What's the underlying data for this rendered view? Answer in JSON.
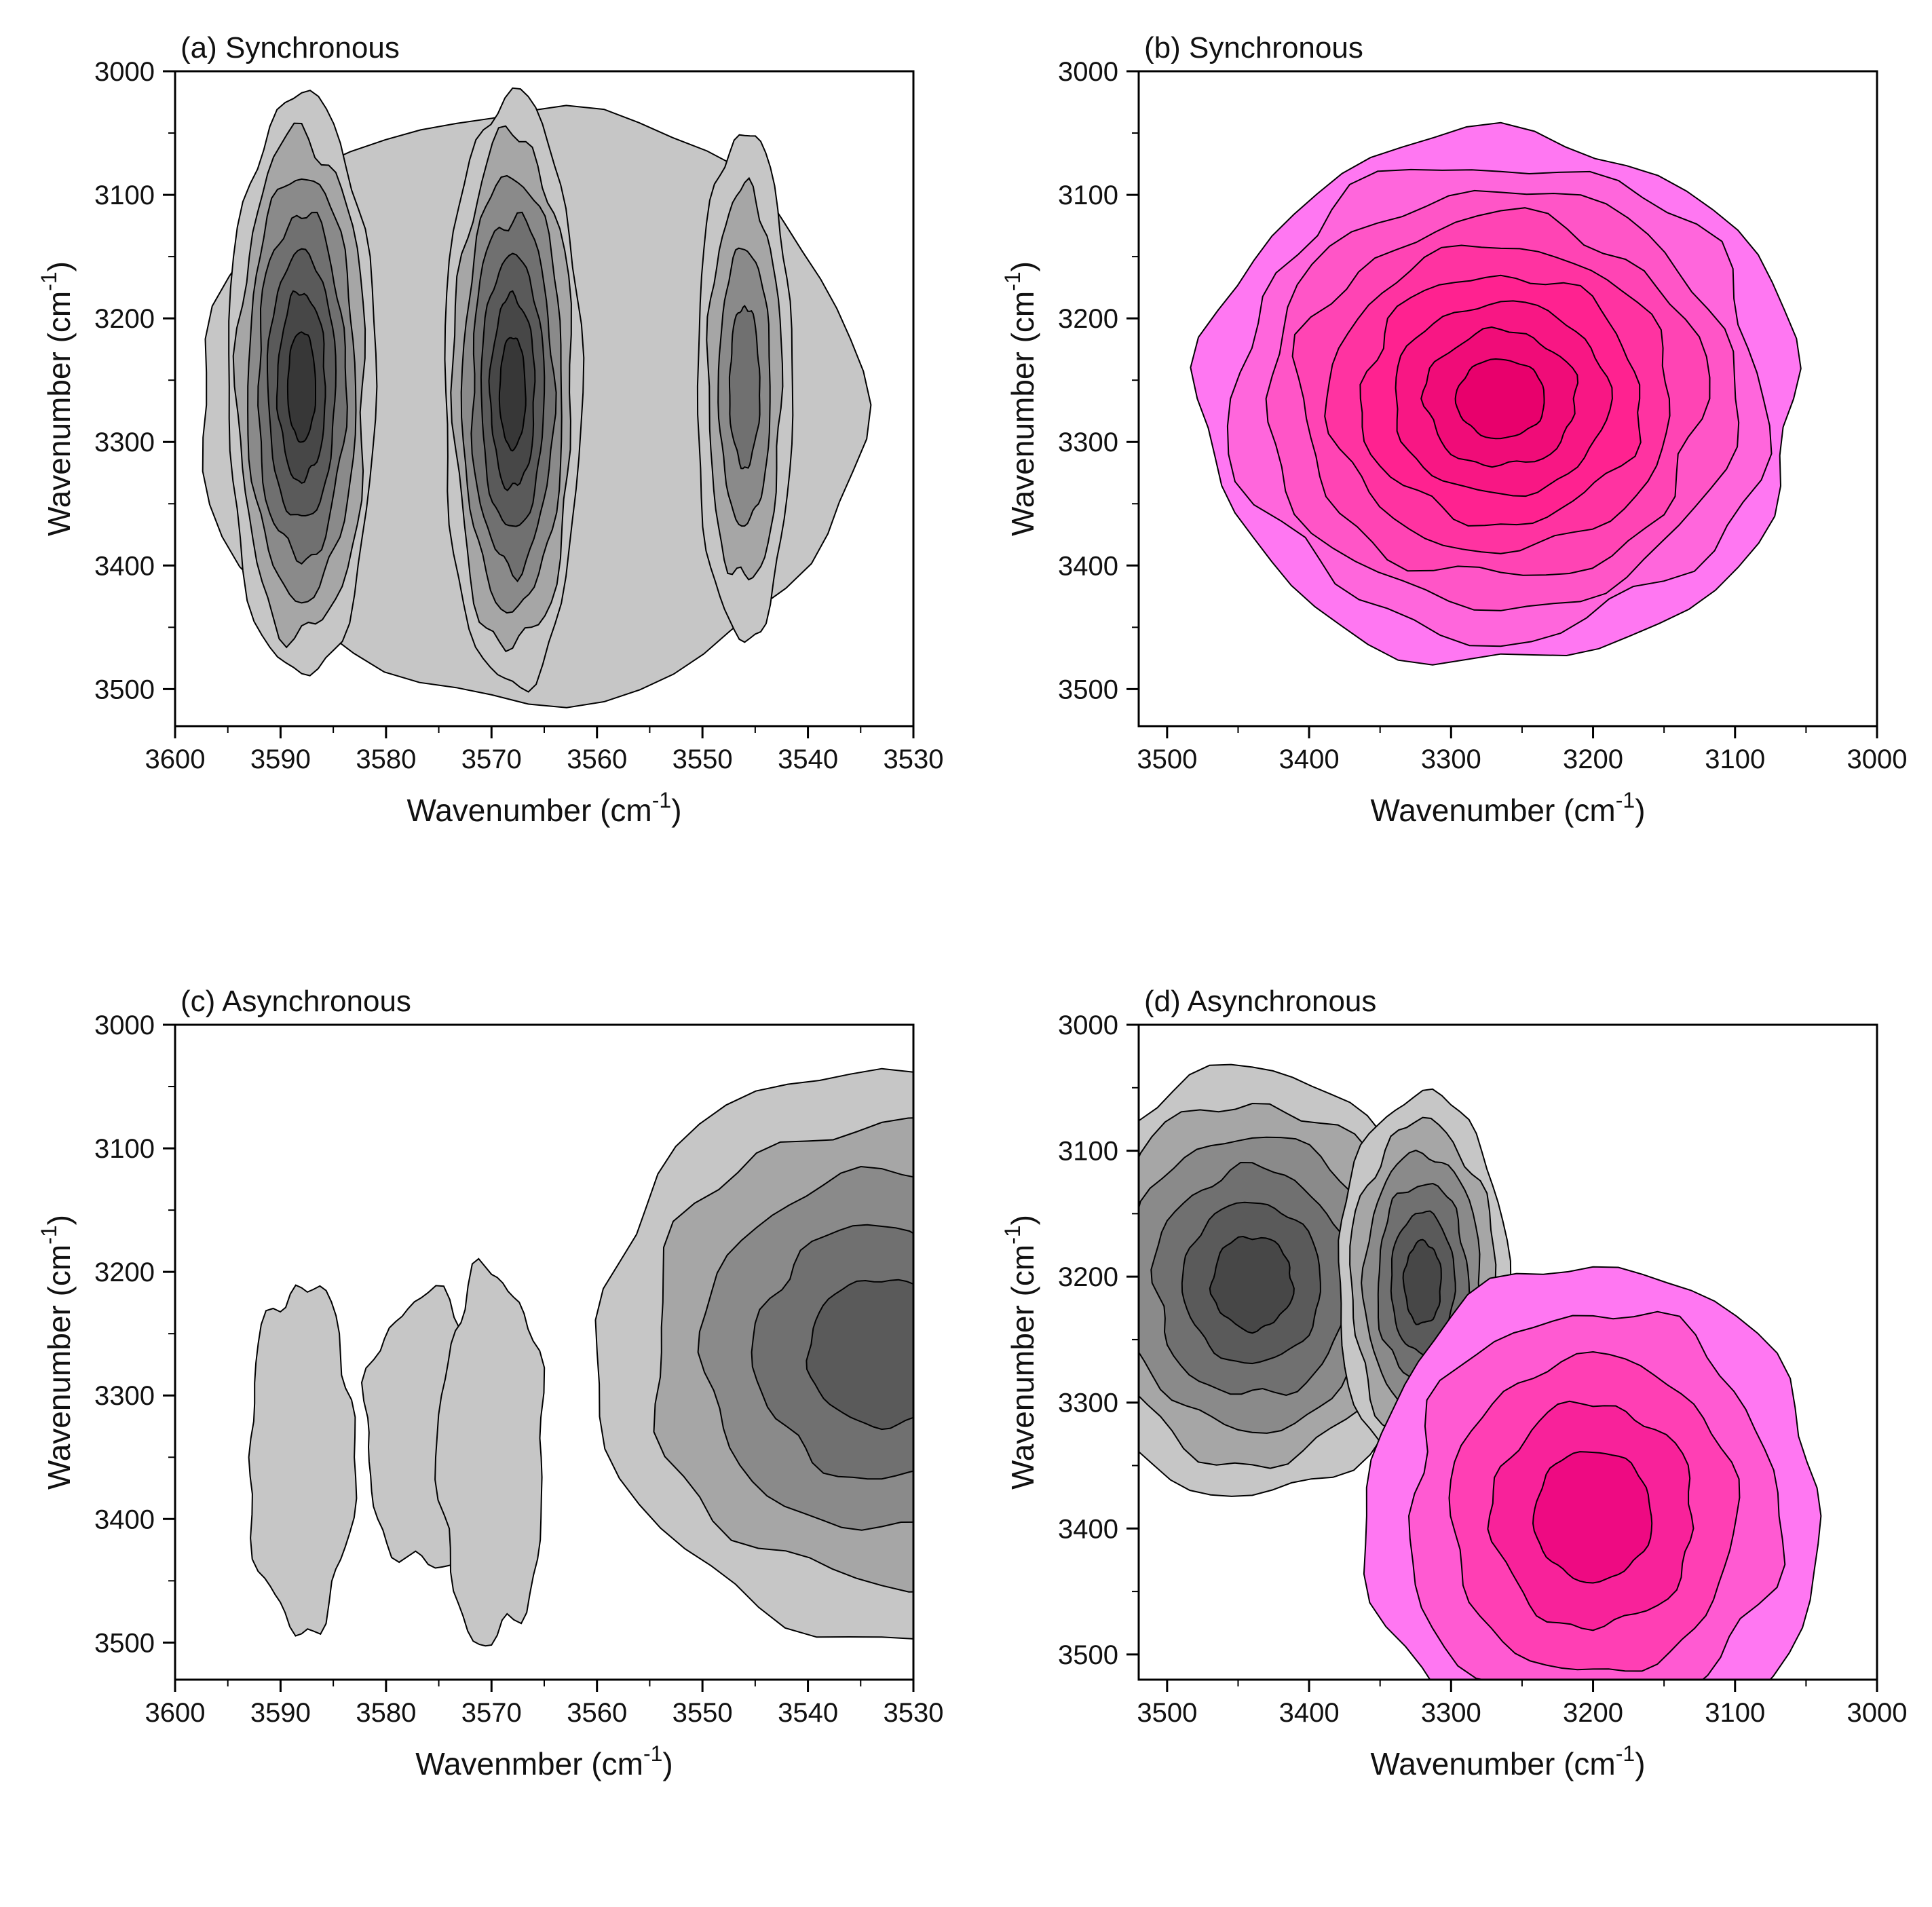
{
  "figure": {
    "panels": [
      "a",
      "b",
      "c",
      "d"
    ]
  },
  "chart_data": [
    {
      "id": "a",
      "type": "contour",
      "title": "(a) Synchronous",
      "xlabel": "Wavenumber (cm",
      "ylabel": "Wavenumber (cm",
      "label_superscript": "-1",
      "label_close": ")",
      "xlim": [
        3600,
        3530
      ],
      "ylim": [
        3000,
        3530
      ],
      "xticks": [
        3600,
        3590,
        3580,
        3570,
        3560,
        3550,
        3540,
        3530
      ],
      "yticks": [
        3000,
        3100,
        3200,
        3300,
        3400,
        3500
      ],
      "palette": "grey",
      "colors": [
        "#c6c6c6",
        "#a6a6a6",
        "#8a8a8a",
        "#707070",
        "#5a5a5a",
        "#474747",
        "#373737"
      ],
      "peaks": [
        {
          "x": 3588,
          "y": 3255,
          "rx": 7,
          "ry": 235,
          "levels": 7
        },
        {
          "x": 3568,
          "y": 3260,
          "rx": 6.5,
          "ry": 240,
          "levels": 7
        },
        {
          "x": 3546,
          "y": 3255,
          "rx": 4.5,
          "ry": 205,
          "levels": 4
        }
      ],
      "envelope": {
        "x1": 3598,
        "x2": 3535,
        "y1": 3030,
        "y2": 3510
      }
    },
    {
      "id": "b",
      "type": "contour",
      "title": "(b) Synchronous",
      "xlabel": "Wavenumber (cm",
      "ylabel": "Wavenumber (cm",
      "label_superscript": "-1",
      "label_close": ")",
      "xlim": [
        3520,
        3000
      ],
      "ylim": [
        3000,
        3530
      ],
      "xticks": [
        3500,
        3400,
        3300,
        3200,
        3100,
        3000
      ],
      "yticks": [
        3000,
        3100,
        3200,
        3300,
        3400,
        3500
      ],
      "palette": "magenta",
      "colors": [
        "#ff77f2",
        "#ff66dc",
        "#ff55c7",
        "#ff44b4",
        "#ff33a1",
        "#ff2290",
        "#f81784",
        "#f00c78",
        "#e8006c"
      ],
      "peaks": [
        {
          "x": 3265,
          "y": 3265,
          "rx": 210,
          "ry": 215,
          "levels": 9
        }
      ]
    },
    {
      "id": "c",
      "type": "contour",
      "title": "(c) Asynchronous",
      "xlabel": "Wavenmber (cm",
      "ylabel": "Wavenumber (cm",
      "label_superscript": "-1",
      "label_close": ")",
      "xlim": [
        3600,
        3530
      ],
      "ylim": [
        3000,
        3530
      ],
      "xticks": [
        3600,
        3590,
        3580,
        3570,
        3560,
        3550,
        3540,
        3530
      ],
      "yticks": [
        3000,
        3100,
        3200,
        3300,
        3400,
        3500
      ],
      "palette": "grey",
      "colors": [
        "#c6c6c6",
        "#a6a6a6",
        "#8a8a8a",
        "#707070",
        "#5a5a5a"
      ],
      "peaks": [
        {
          "x": 3533,
          "y": 3265,
          "rx": 27,
          "ry": 230,
          "levels": 5
        }
      ],
      "lobes": [
        {
          "x": 3588,
          "y": 3350,
          "rx": 5,
          "ry": 140
        },
        {
          "x": 3576,
          "y": 3330,
          "rx": 6,
          "ry": 110
        },
        {
          "x": 3570,
          "y": 3350,
          "rx": 5,
          "ry": 150
        }
      ]
    },
    {
      "id": "d",
      "type": "contour",
      "title": "(d) Asynchronous",
      "xlabel": "Wavenumber (cm",
      "ylabel": "Wavenumber (cm",
      "label_superscript": "-1",
      "label_close": ")",
      "xlim": [
        3520,
        3000
      ],
      "ylim": [
        3000,
        3520
      ],
      "xticks": [
        3500,
        3400,
        3300,
        3200,
        3100,
        3000
      ],
      "yticks": [
        3000,
        3100,
        3200,
        3300,
        3400,
        3500
      ],
      "palette": "grey-magenta",
      "colors": [
        "#c6c6c6",
        "#a6a6a6",
        "#8a8a8a",
        "#707070",
        "#5a5a5a",
        "#474747"
      ],
      "colors_pos": [
        "#ff77f2",
        "#ff5ad2",
        "#ff3fb4",
        "#f8229a",
        "#ee0a82"
      ],
      "neg_peaks": [
        {
          "x": 3440,
          "y": 3205,
          "rx": 130,
          "ry": 170,
          "levels": 6
        },
        {
          "x": 3320,
          "y": 3205,
          "rx": 60,
          "ry": 150,
          "levels": 6
        }
      ],
      "pos_peaks": [
        {
          "x": 3200,
          "y": 3390,
          "rx": 160,
          "ry": 200,
          "levels": 5
        }
      ]
    }
  ]
}
